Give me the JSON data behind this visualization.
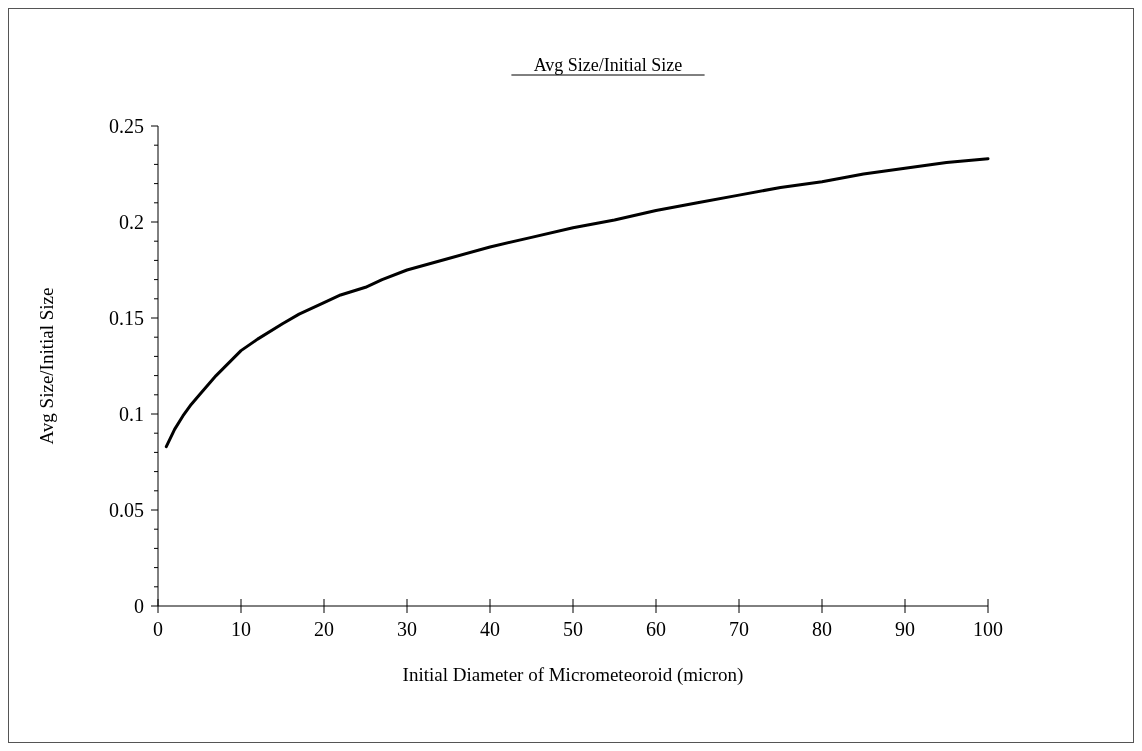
{
  "chart_data": {
    "type": "line",
    "title": "Avg Size/Initial Size",
    "xlabel": "Initial Diameter of Micrometeoroid (micron)",
    "ylabel": "Avg Size/Initial Size",
    "x": [
      1,
      2,
      3,
      4,
      5,
      7,
      10,
      12,
      15,
      17,
      20,
      22,
      25,
      27,
      30,
      35,
      40,
      45,
      50,
      55,
      60,
      65,
      70,
      75,
      80,
      85,
      90,
      95,
      100
    ],
    "series": [
      {
        "color": "#000000",
        "values": [
          0.083,
          0.092,
          0.099,
          0.105,
          0.11,
          0.12,
          0.133,
          0.139,
          0.147,
          0.152,
          0.158,
          0.162,
          0.166,
          0.17,
          0.175,
          0.181,
          0.187,
          0.192,
          0.197,
          0.201,
          0.206,
          0.21,
          0.214,
          0.218,
          0.221,
          0.225,
          0.228,
          0.231,
          0.233
        ]
      }
    ],
    "xlim": [
      0,
      100
    ],
    "xticks": [
      0,
      10,
      20,
      30,
      40,
      50,
      60,
      70,
      80,
      90,
      100
    ],
    "ylim": [
      0,
      0.25
    ],
    "yticks": [
      0,
      {
        "value": 0.01,
        "label": null
      },
      {
        "value": 0.02,
        "label": null
      },
      {
        "value": 0.03,
        "label": null
      },
      {
        "value": 0.04,
        "label": null
      },
      0.05,
      {
        "value": 0.06,
        "label": null
      },
      {
        "value": 0.07,
        "label": null
      },
      {
        "value": 0.08,
        "label": null
      },
      {
        "value": 0.09,
        "label": null
      },
      0.1,
      {
        "value": 0.11,
        "label": null
      },
      {
        "value": 0.12,
        "label": null
      },
      {
        "value": 0.13,
        "label": null
      },
      {
        "value": 0.14,
        "label": null
      },
      0.15,
      {
        "value": 0.16,
        "label": null
      },
      {
        "value": 0.17,
        "label": null
      },
      {
        "value": 0.18,
        "label": null
      },
      {
        "value": 0.19,
        "label": null
      },
      0.2,
      {
        "value": 0.21,
        "label": null
      },
      {
        "value": 0.22,
        "label": null
      },
      {
        "value": 0.23,
        "label": null
      },
      {
        "value": 0.24,
        "label": null
      },
      0.25
    ],
    "grid": false,
    "marker": "none",
    "line_style": "solid"
  }
}
